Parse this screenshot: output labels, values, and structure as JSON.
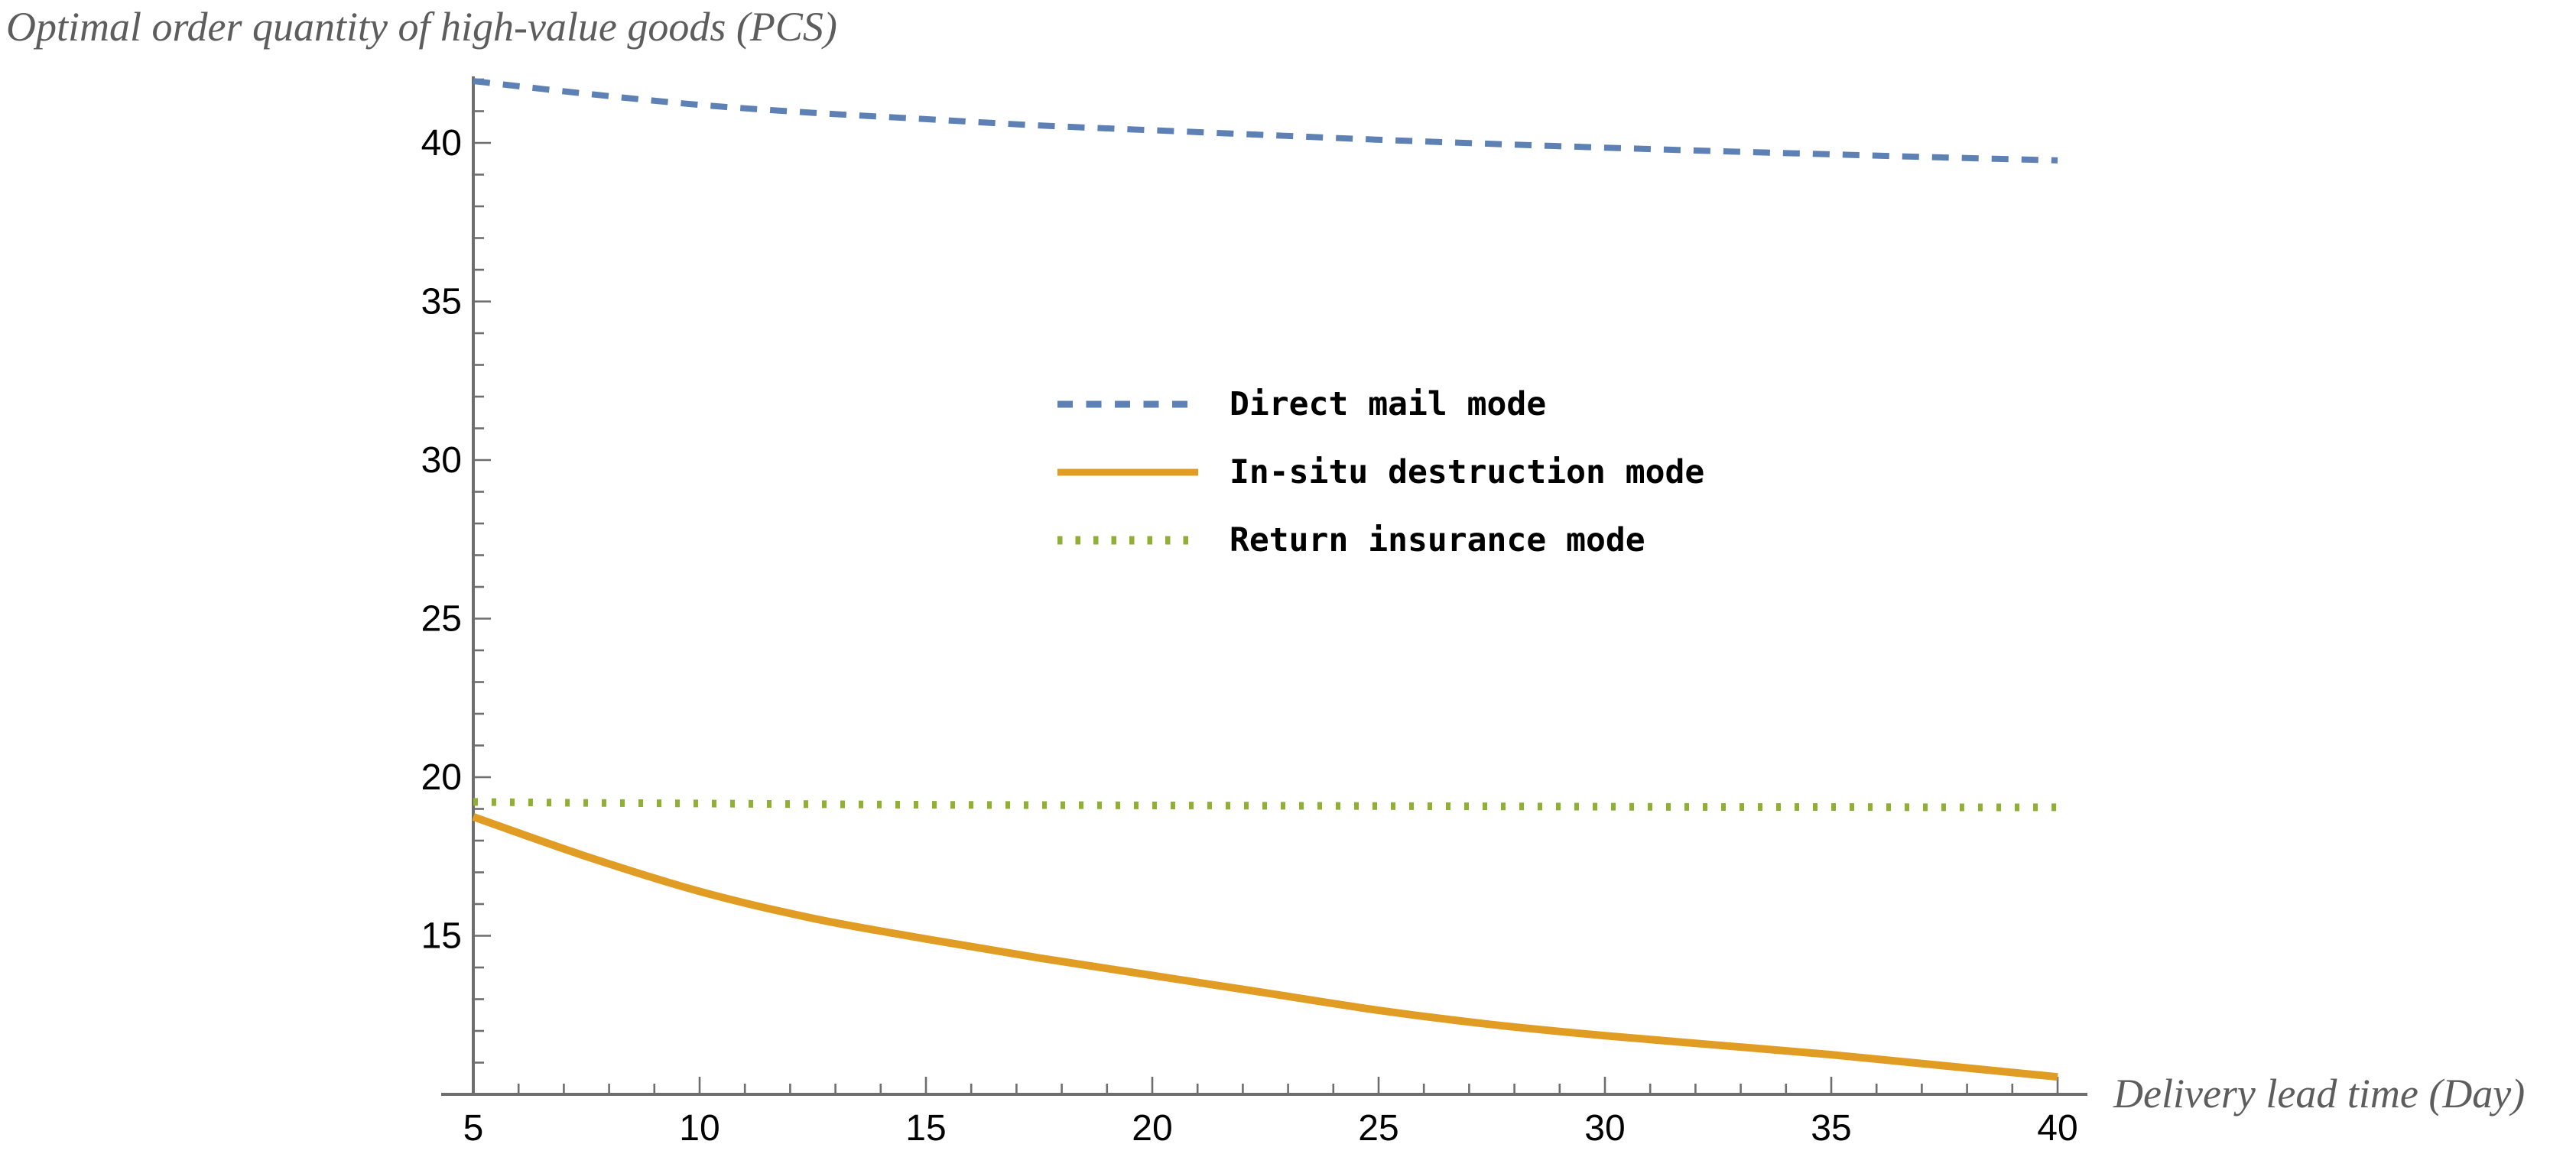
{
  "title": "Optimal order quantity of high-value goods (PCS)",
  "x_axis_title": "Delivery lead time (Day)",
  "colors": {
    "direct_mail_blue": "#5E81B5",
    "in_situ_orange": "#E19C24",
    "return_insurance_green": "#8FB032",
    "axis_gray": "#6e6e6e",
    "label_gray": "#5d5d5d",
    "tick_text": "#000000",
    "background": "#ffffff"
  },
  "chart_data": {
    "type": "line",
    "title": "Optimal order quantity of high-value goods (PCS)",
    "xlabel": "Delivery lead time (Day)",
    "ylabel": "Optimal order quantity of high-value goods (PCS)",
    "xlim": [
      5,
      40.7
    ],
    "ylim": [
      10,
      42.1
    ],
    "x_major_ticks": [
      5,
      10,
      15,
      20,
      25,
      30,
      35,
      40
    ],
    "y_major_ticks": [
      15,
      20,
      25,
      30,
      35,
      40
    ],
    "x_minor_tick_step": 1,
    "y_minor_tick_step": 1,
    "grid": false,
    "legend_position": "center",
    "x": [
      5,
      7.5,
      10,
      12.5,
      15,
      17.5,
      20,
      22.5,
      25,
      27.5,
      30,
      32.5,
      35,
      37.5,
      40
    ],
    "series": [
      {
        "name": "Direct mail mode",
        "style": "dashed",
        "color": "#5E81B5",
        "values": [
          41.95,
          41.55,
          41.2,
          40.95,
          40.75,
          40.55,
          40.4,
          40.25,
          40.1,
          39.97,
          39.85,
          39.74,
          39.64,
          39.54,
          39.45
        ]
      },
      {
        "name": "In-situ destruction mode",
        "style": "solid",
        "color": "#E19C24",
        "values": [
          18.75,
          17.5,
          16.4,
          15.55,
          14.9,
          14.3,
          13.75,
          13.2,
          12.65,
          12.2,
          11.85,
          11.55,
          11.25,
          10.9,
          10.55
        ]
      },
      {
        "name": "Return insurance mode",
        "style": "dotted",
        "color": "#8FB032",
        "values": [
          19.22,
          19.19,
          19.17,
          19.15,
          19.13,
          19.12,
          19.11,
          19.1,
          19.09,
          19.08,
          19.07,
          19.06,
          19.06,
          19.05,
          19.05
        ]
      }
    ]
  }
}
